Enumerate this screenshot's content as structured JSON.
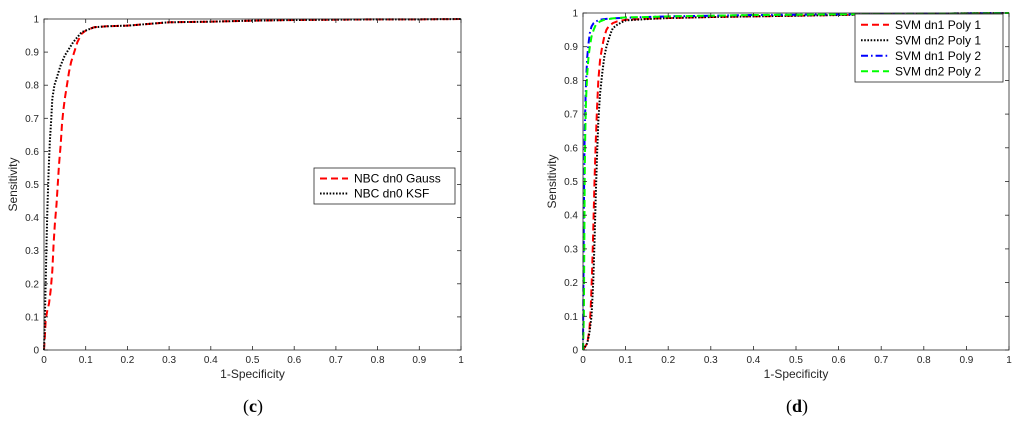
{
  "chart_data": [
    {
      "panel": "(c)",
      "type": "line",
      "xlabel": "1-Specificity",
      "ylabel": "Sensitivity",
      "xlim": [
        0,
        1
      ],
      "ylim": [
        0,
        1
      ],
      "xticks": [
        "0",
        "0.1",
        "0.2",
        "0.3",
        "0.4",
        "0.5",
        "0.6",
        "0.7",
        "0.8",
        "0.9",
        "1"
      ],
      "yticks": [
        "0",
        "0.1",
        "0.2",
        "0.3",
        "0.4",
        "0.5",
        "0.6",
        "0.7",
        "0.8",
        "0.9",
        "1"
      ],
      "grid": false,
      "legend_position": "right",
      "series": [
        {
          "name": "NBC dn0 Gauss",
          "color": "#ff0000",
          "style": "dashed",
          "x": [
            0,
            0.002,
            0.004,
            0.008,
            0.012,
            0.016,
            0.02,
            0.023,
            0.026,
            0.03,
            0.033,
            0.036,
            0.04,
            0.043,
            0.046,
            0.05,
            0.055,
            0.06,
            0.065,
            0.07,
            0.08,
            0.09,
            0.1,
            0.12,
            0.15,
            0.2,
            0.25,
            0.3,
            0.4,
            0.5,
            0.6,
            0.7,
            0.8,
            0.9,
            1.0
          ],
          "y": [
            0,
            0.04,
            0.09,
            0.12,
            0.14,
            0.18,
            0.24,
            0.32,
            0.38,
            0.44,
            0.5,
            0.56,
            0.62,
            0.68,
            0.72,
            0.76,
            0.8,
            0.84,
            0.87,
            0.89,
            0.93,
            0.955,
            0.965,
            0.975,
            0.978,
            0.98,
            0.985,
            0.99,
            0.992,
            0.995,
            0.997,
            0.998,
            0.999,
            0.999,
            1.0
          ]
        },
        {
          "name": "NBC dn0 KSF",
          "color": "#000000",
          "style": "dotted",
          "x": [
            0,
            0.002,
            0.004,
            0.006,
            0.008,
            0.01,
            0.012,
            0.014,
            0.017,
            0.02,
            0.025,
            0.03,
            0.035,
            0.04,
            0.05,
            0.06,
            0.07,
            0.08,
            0.09,
            0.1,
            0.12,
            0.15,
            0.2,
            0.25,
            0.3,
            0.4,
            0.5,
            0.6,
            0.7,
            0.8,
            0.9,
            1.0
          ],
          "y": [
            0,
            0.1,
            0.2,
            0.32,
            0.42,
            0.5,
            0.57,
            0.63,
            0.69,
            0.76,
            0.8,
            0.82,
            0.84,
            0.86,
            0.89,
            0.91,
            0.93,
            0.945,
            0.96,
            0.965,
            0.975,
            0.978,
            0.98,
            0.985,
            0.99,
            0.992,
            0.995,
            0.997,
            0.998,
            0.999,
            0.999,
            1.0
          ]
        }
      ]
    },
    {
      "panel": "(d)",
      "type": "line",
      "xlabel": "1-Specificity",
      "ylabel": "Sensitivity",
      "xlim": [
        0,
        1
      ],
      "ylim": [
        0,
        1
      ],
      "xticks": [
        "0",
        "0.1",
        "0.2",
        "0.3",
        "0.4",
        "0.5",
        "0.6",
        "0.7",
        "0.8",
        "0.9",
        "1"
      ],
      "yticks": [
        "0",
        "0.1",
        "0.2",
        "0.3",
        "0.4",
        "0.5",
        "0.6",
        "0.7",
        "0.8",
        "0.9",
        "1"
      ],
      "grid": false,
      "legend_position": "top-right",
      "series": [
        {
          "name": "SVM dn1 Poly 1",
          "color": "#ff0000",
          "style": "dashed",
          "x": [
            0,
            0.01,
            0.015,
            0.018,
            0.021,
            0.024,
            0.027,
            0.03,
            0.033,
            0.036,
            0.04,
            0.045,
            0.05,
            0.055,
            0.06,
            0.07,
            0.08,
            0.1,
            0.15,
            0.2,
            0.3,
            0.4,
            0.5,
            0.6,
            0.7,
            0.8,
            0.9,
            1.0
          ],
          "y": [
            0,
            0.02,
            0.06,
            0.12,
            0.22,
            0.35,
            0.5,
            0.62,
            0.72,
            0.8,
            0.86,
            0.9,
            0.93,
            0.95,
            0.96,
            0.97,
            0.975,
            0.98,
            0.983,
            0.985,
            0.988,
            0.99,
            0.992,
            0.994,
            0.996,
            0.998,
            0.999,
            1.0
          ]
        },
        {
          "name": "SVM dn2 Poly 1",
          "color": "#000000",
          "style": "dotted",
          "x": [
            0,
            0.01,
            0.015,
            0.02,
            0.024,
            0.027,
            0.03,
            0.033,
            0.036,
            0.04,
            0.045,
            0.05,
            0.055,
            0.06,
            0.065,
            0.07,
            0.08,
            0.09,
            0.1,
            0.15,
            0.2,
            0.3,
            0.4,
            0.5,
            0.6,
            0.7,
            0.8,
            0.9,
            1.0
          ],
          "y": [
            0,
            0.02,
            0.05,
            0.1,
            0.2,
            0.32,
            0.46,
            0.58,
            0.68,
            0.76,
            0.82,
            0.87,
            0.9,
            0.92,
            0.94,
            0.955,
            0.965,
            0.972,
            0.978,
            0.982,
            0.985,
            0.988,
            0.99,
            0.992,
            0.994,
            0.996,
            0.998,
            0.999,
            1.0
          ]
        },
        {
          "name": "SVM dn1 Poly 2",
          "color": "#0000ff",
          "style": "dash-dot",
          "x": [
            0,
            0.001,
            0.002,
            0.003,
            0.004,
            0.006,
            0.008,
            0.01,
            0.013,
            0.016,
            0.02,
            0.025,
            0.03,
            0.04,
            0.05,
            0.07,
            0.1,
            0.15,
            0.2,
            0.3,
            0.4,
            0.5,
            0.6,
            0.7,
            0.8,
            0.9,
            1.0
          ],
          "y": [
            0,
            0.2,
            0.4,
            0.55,
            0.65,
            0.75,
            0.82,
            0.87,
            0.91,
            0.94,
            0.96,
            0.97,
            0.975,
            0.98,
            0.982,
            0.984,
            0.986,
            0.988,
            0.99,
            0.992,
            0.994,
            0.995,
            0.996,
            0.997,
            0.998,
            0.999,
            1.0
          ]
        },
        {
          "name": "SVM dn2 Poly 2",
          "color": "#00ff00",
          "style": "dashed",
          "x": [
            0,
            0.002,
            0.003,
            0.004,
            0.005,
            0.007,
            0.01,
            0.013,
            0.016,
            0.02,
            0.025,
            0.03,
            0.04,
            0.05,
            0.07,
            0.1,
            0.15,
            0.2,
            0.3,
            0.4,
            0.5,
            0.6,
            0.7,
            0.8,
            0.9,
            1.0
          ],
          "y": [
            0,
            0.1,
            0.3,
            0.5,
            0.62,
            0.74,
            0.82,
            0.87,
            0.9,
            0.93,
            0.95,
            0.965,
            0.975,
            0.98,
            0.984,
            0.987,
            0.988,
            0.99,
            0.992,
            0.994,
            0.995,
            0.996,
            0.997,
            0.998,
            0.999,
            1.0
          ]
        }
      ]
    }
  ]
}
